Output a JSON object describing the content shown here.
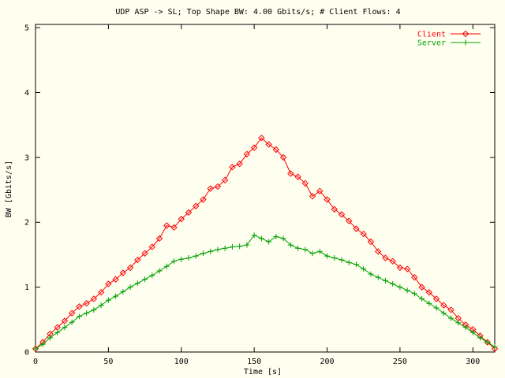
{
  "chart_data": {
    "type": "line",
    "title": "UDP ASP -> SL; Top Shape BW: 4.00 Gbits/s; # Client Flows: 4",
    "xlabel": "Time [s]",
    "ylabel": "BW [Gbits/s]",
    "xlim": [
      0,
      315
    ],
    "ylim": [
      0,
      5.05
    ],
    "xticks": [
      0,
      50,
      100,
      150,
      200,
      250,
      300
    ],
    "yticks": [
      0,
      1,
      2,
      3,
      4,
      5
    ],
    "grid": false,
    "legend_position": "top-right",
    "series": [
      {
        "name": "Client",
        "color": "#ff0000",
        "marker": "diamond",
        "x": [
          0,
          5,
          10,
          15,
          20,
          25,
          30,
          35,
          40,
          45,
          50,
          55,
          60,
          65,
          70,
          75,
          80,
          85,
          90,
          95,
          100,
          105,
          110,
          115,
          120,
          125,
          130,
          135,
          140,
          145,
          150,
          155,
          160,
          165,
          170,
          175,
          180,
          185,
          190,
          195,
          200,
          205,
          210,
          215,
          220,
          225,
          230,
          235,
          240,
          245,
          250,
          255,
          260,
          265,
          270,
          275,
          280,
          285,
          290,
          295,
          300,
          305,
          310,
          315
        ],
        "y": [
          0.05,
          0.15,
          0.28,
          0.38,
          0.48,
          0.6,
          0.7,
          0.75,
          0.82,
          0.92,
          1.05,
          1.12,
          1.22,
          1.3,
          1.42,
          1.52,
          1.62,
          1.75,
          1.95,
          1.92,
          2.05,
          2.15,
          2.25,
          2.35,
          2.52,
          2.55,
          2.65,
          2.85,
          2.9,
          3.05,
          3.15,
          3.3,
          3.2,
          3.12,
          3.0,
          2.75,
          2.7,
          2.6,
          2.4,
          2.48,
          2.35,
          2.2,
          2.12,
          2.02,
          1.9,
          1.82,
          1.7,
          1.55,
          1.45,
          1.4,
          1.3,
          1.28,
          1.15,
          1.0,
          0.92,
          0.82,
          0.72,
          0.65,
          0.52,
          0.42,
          0.35,
          0.25,
          0.15,
          0.05
        ]
      },
      {
        "name": "Server",
        "color": "#00a000",
        "marker": "plus",
        "x": [
          0,
          5,
          10,
          15,
          20,
          25,
          30,
          35,
          40,
          45,
          50,
          55,
          60,
          65,
          70,
          75,
          80,
          85,
          90,
          95,
          100,
          105,
          110,
          115,
          120,
          125,
          130,
          135,
          140,
          145,
          150,
          155,
          160,
          165,
          170,
          175,
          180,
          185,
          190,
          195,
          200,
          205,
          210,
          215,
          220,
          225,
          230,
          235,
          240,
          245,
          250,
          255,
          260,
          265,
          270,
          275,
          280,
          285,
          290,
          295,
          300,
          305,
          310,
          315
        ],
        "y": [
          0.05,
          0.12,
          0.22,
          0.3,
          0.38,
          0.46,
          0.55,
          0.6,
          0.65,
          0.72,
          0.8,
          0.86,
          0.93,
          1.0,
          1.06,
          1.12,
          1.18,
          1.25,
          1.32,
          1.4,
          1.43,
          1.45,
          1.48,
          1.52,
          1.55,
          1.58,
          1.6,
          1.62,
          1.63,
          1.65,
          1.8,
          1.75,
          1.7,
          1.78,
          1.75,
          1.65,
          1.6,
          1.58,
          1.52,
          1.55,
          1.48,
          1.45,
          1.42,
          1.38,
          1.35,
          1.28,
          1.2,
          1.15,
          1.1,
          1.05,
          1.0,
          0.95,
          0.9,
          0.82,
          0.75,
          0.68,
          0.6,
          0.52,
          0.45,
          0.38,
          0.3,
          0.22,
          0.15,
          0.08
        ]
      }
    ]
  }
}
